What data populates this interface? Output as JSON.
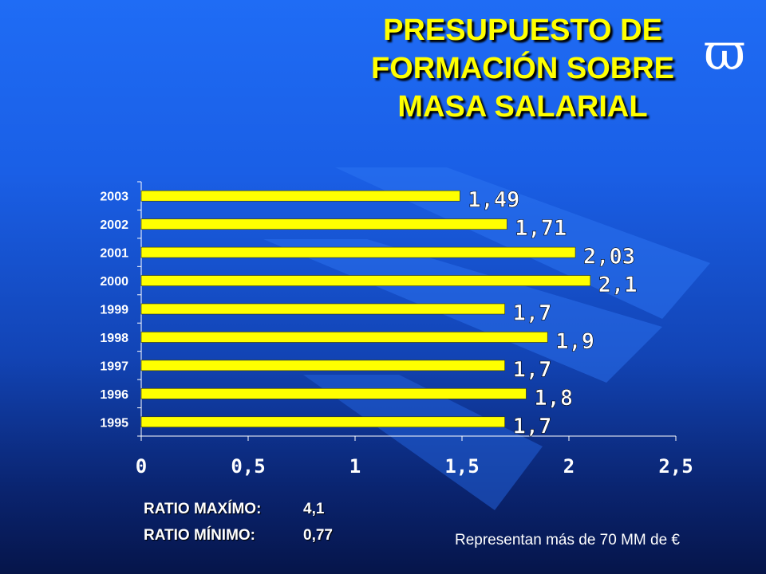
{
  "slide": {
    "title_lines": [
      "PRESUPUESTO DE",
      "FORMACIÓN SOBRE",
      "MASA SALARIAL"
    ],
    "logo_symbol": "ϖ",
    "ratio_max_label": "RATIO MAXÍMO:",
    "ratio_max_value": "4,1",
    "ratio_min_label": "RATIO MÍNIMO:",
    "ratio_min_value": "0,77",
    "footnote": "Representan más de 70 MM de €"
  },
  "colors": {
    "bar": "#ffff00",
    "title": "#ffff00",
    "label": "#ffffff"
  },
  "chart_data": {
    "type": "bar",
    "orientation": "horizontal",
    "categories": [
      "2003",
      "2002",
      "2001",
      "2000",
      "1999",
      "1998",
      "1997",
      "1996",
      "1995"
    ],
    "values": [
      1.49,
      1.71,
      2.03,
      2.1,
      1.7,
      1.9,
      1.7,
      1.8,
      1.7
    ],
    "data_labels": [
      "1,49",
      "1,71",
      "2,03",
      "2,1",
      "1,7",
      "1,9",
      "1,7",
      "1,8",
      "1,7"
    ],
    "xlim": [
      0,
      2.5
    ],
    "xticks": [
      0,
      0.5,
      1,
      1.5,
      2,
      2.5
    ],
    "xtick_labels": [
      "0",
      "0,5",
      "1",
      "1,5",
      "2",
      "2,5"
    ],
    "grid": false,
    "legend": "none"
  }
}
